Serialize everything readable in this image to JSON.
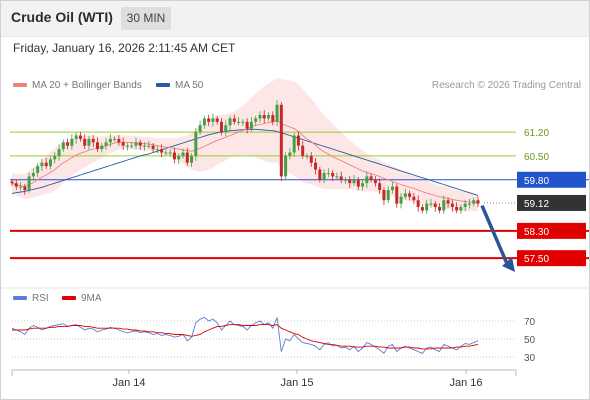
{
  "header": {
    "title": "Crude Oil (WTI)",
    "timeframe": "30 MIN"
  },
  "datetime": "Friday, January 16, 2026 2:11:45 AM CET",
  "legend": {
    "ma20_label": "MA 20 + Bollinger Bands",
    "ma50_label": "MA 50",
    "rsi_label": "RSI",
    "rsi_ma_label": "9MA"
  },
  "credit": "Research © 2026 Trading Central",
  "colors": {
    "bull": "#43a047",
    "bear": "#c62828",
    "ma20": "#f08080",
    "band_fill": "#fde3e3",
    "ma50": "#2c5aa0",
    "support": "#e00000",
    "resistance_minor": "#9acd32",
    "resistance": "#2255cc",
    "current": "#333333",
    "arrow": "#2a5597",
    "rsi": "#5b7fd9",
    "rsi_ma": "#e00000"
  },
  "chart_data": {
    "type": "candlestick",
    "x_ticks": [
      "Jan 14",
      "Jan 15",
      "Jan 16"
    ],
    "price_ylim": [
      56.8,
      62.2
    ],
    "levels": [
      {
        "value": 61.2,
        "label": "61.20",
        "kind": "resistance_minor"
      },
      {
        "value": 60.5,
        "label": "60.50",
        "kind": "resistance_minor"
      },
      {
        "value": 59.8,
        "label": "59.80",
        "kind": "resistance"
      },
      {
        "value": 59.12,
        "label": "59.12",
        "kind": "current"
      },
      {
        "value": 58.3,
        "label": "58.30",
        "kind": "support"
      },
      {
        "value": 57.5,
        "label": "57.50",
        "kind": "support"
      }
    ],
    "close": [
      59.7,
      59.6,
      59.6,
      59.5,
      59.9,
      60.0,
      60.2,
      60.3,
      60.2,
      60.4,
      60.5,
      60.7,
      60.9,
      60.8,
      61.0,
      61.1,
      61.0,
      60.8,
      61.0,
      60.9,
      60.7,
      60.8,
      60.9,
      61.0,
      61.0,
      60.9,
      60.8,
      60.8,
      60.8,
      60.9,
      60.8,
      60.8,
      60.8,
      60.7,
      60.7,
      60.6,
      60.6,
      60.6,
      60.4,
      60.5,
      60.6,
      60.3,
      60.5,
      61.2,
      61.4,
      61.6,
      61.5,
      61.6,
      61.5,
      61.2,
      61.4,
      61.6,
      61.5,
      61.5,
      61.5,
      61.3,
      61.5,
      61.6,
      61.7,
      61.6,
      61.7,
      61.5,
      62.0,
      59.9,
      60.5,
      60.6,
      61.1,
      60.8,
      60.5,
      60.5,
      60.3,
      60.1,
      59.8,
      60.0,
      60.0,
      59.9,
      59.9,
      59.8,
      59.8,
      59.7,
      59.8,
      59.6,
      59.7,
      59.9,
      59.8,
      59.7,
      59.5,
      59.2,
      59.5,
      59.6,
      59.1,
      59.3,
      59.4,
      59.3,
      59.2,
      59.0,
      58.9,
      59.1,
      59.1,
      59.0,
      58.9,
      59.2,
      59.1,
      59.0,
      58.9,
      59.0,
      59.1,
      59.1,
      59.2,
      59.1
    ],
    "ma20": [
      59.7,
      59.65,
      59.63,
      59.6,
      59.66,
      59.72,
      59.8,
      59.88,
      59.94,
      60.02,
      60.1,
      60.2,
      60.3,
      60.37,
      60.45,
      60.52,
      60.58,
      60.62,
      60.67,
      60.7,
      60.73,
      60.75,
      60.8,
      60.84,
      60.88,
      60.9,
      60.9,
      60.9,
      60.89,
      60.88,
      60.87,
      60.86,
      60.85,
      60.83,
      60.8,
      60.78,
      60.76,
      60.75,
      60.72,
      60.7,
      60.68,
      60.65,
      60.64,
      60.68,
      60.72,
      60.78,
      60.84,
      60.9,
      60.96,
      61.0,
      61.05,
      61.1,
      61.15,
      61.2,
      61.25,
      61.3,
      61.35,
      61.4,
      61.42,
      61.45,
      61.48,
      61.5,
      61.55,
      61.45,
      61.4,
      61.35,
      61.3,
      61.22,
      61.1,
      61.0,
      60.92,
      60.82,
      60.7,
      60.62,
      60.55,
      60.48,
      60.42,
      60.36,
      60.3,
      60.24,
      60.18,
      60.12,
      60.06,
      60.02,
      59.98,
      59.94,
      59.9,
      59.84,
      59.8,
      59.75,
      59.7,
      59.66,
      59.62,
      59.58,
      59.55,
      59.5,
      59.45,
      59.41,
      59.37,
      59.34,
      59.3,
      59.28,
      59.25,
      59.22,
      59.2,
      59.18,
      59.16,
      59.15,
      59.14,
      59.13
    ],
    "ma50": [
      59.4,
      59.42,
      59.44,
      59.46,
      59.49,
      59.52,
      59.55,
      59.58,
      59.62,
      59.66,
      59.7,
      59.74,
      59.78,
      59.82,
      59.86,
      59.9,
      59.94,
      59.98,
      60.02,
      60.06,
      60.1,
      60.14,
      60.18,
      60.22,
      60.26,
      60.3,
      60.34,
      60.38,
      60.42,
      60.46,
      60.5,
      60.53,
      60.56,
      60.6,
      60.64,
      60.68,
      60.72,
      60.76,
      60.8,
      60.84,
      60.88,
      60.92,
      60.96,
      61.0,
      61.04,
      61.08,
      61.12,
      61.15,
      61.18,
      61.2,
      61.22,
      61.24,
      61.25,
      61.26,
      61.27,
      61.28,
      61.28,
      61.28,
      61.27,
      61.26,
      61.25,
      61.24,
      61.22,
      61.18,
      61.14,
      61.1,
      61.06,
      61.02,
      60.98,
      60.94,
      60.9,
      60.86,
      60.82,
      60.78,
      60.74,
      60.7,
      60.66,
      60.62,
      60.58,
      60.54,
      60.5,
      60.46,
      60.42,
      60.38,
      60.34,
      60.3,
      60.26,
      60.22,
      60.18,
      60.14,
      60.1,
      60.06,
      60.02,
      59.98,
      59.94,
      59.9,
      59.86,
      59.82,
      59.78,
      59.74,
      59.7,
      59.66,
      59.62,
      59.58,
      59.54,
      59.5,
      59.46,
      59.42,
      59.38,
      59.34
    ],
    "band_width": [
      0.3,
      0.32,
      0.34,
      0.36,
      0.4,
      0.44,
      0.48,
      0.52,
      0.56,
      0.6,
      0.62,
      0.62,
      0.6,
      0.56,
      0.52,
      0.5,
      0.48,
      0.46,
      0.44,
      0.4,
      0.36,
      0.32,
      0.28,
      0.26,
      0.24,
      0.22,
      0.2,
      0.2,
      0.2,
      0.2,
      0.2,
      0.2,
      0.2,
      0.21,
      0.22,
      0.24,
      0.26,
      0.28,
      0.3,
      0.34,
      0.4,
      0.46,
      0.54,
      0.62,
      0.68,
      0.72,
      0.74,
      0.74,
      0.72,
      0.7,
      0.68,
      0.66,
      0.66,
      0.68,
      0.72,
      0.78,
      0.86,
      0.94,
      1.02,
      1.1,
      1.16,
      1.2,
      1.24,
      1.3,
      1.34,
      1.36,
      1.38,
      1.38,
      1.36,
      1.32,
      1.26,
      1.2,
      1.14,
      1.08,
      1.02,
      0.96,
      0.9,
      0.84,
      0.78,
      0.72,
      0.68,
      0.64,
      0.6,
      0.56,
      0.52,
      0.5,
      0.48,
      0.47,
      0.46,
      0.45,
      0.44,
      0.43,
      0.42,
      0.41,
      0.4,
      0.39,
      0.38,
      0.37,
      0.36,
      0.35,
      0.34,
      0.33,
      0.32,
      0.31,
      0.3,
      0.29,
      0.28,
      0.27,
      0.26,
      0.25
    ],
    "rsi_ylim": [
      20,
      80
    ],
    "rsi_levels": [
      70,
      50,
      30
    ],
    "rsi": [
      62,
      60,
      58,
      55,
      62,
      65,
      63,
      60,
      62,
      64,
      65,
      66,
      67,
      64,
      65,
      66,
      63,
      60,
      62,
      61,
      58,
      60,
      61,
      63,
      62,
      60,
      58,
      57,
      58,
      59,
      57,
      58,
      57,
      55,
      56,
      54,
      55,
      54,
      52,
      53,
      55,
      48,
      52,
      68,
      72,
      74,
      70,
      72,
      68,
      60,
      65,
      70,
      66,
      65,
      64,
      60,
      65,
      68,
      70,
      66,
      68,
      62,
      74,
      36,
      50,
      48,
      55,
      50,
      46,
      45,
      44,
      42,
      38,
      44,
      46,
      42,
      43,
      40,
      41,
      38,
      42,
      36,
      40,
      46,
      44,
      41,
      38,
      34,
      42,
      44,
      36,
      40,
      42,
      40,
      38,
      36,
      34,
      40,
      41,
      38,
      36,
      44,
      42,
      40,
      38,
      42,
      45,
      44,
      46,
      48
    ],
    "rsi_ma": [
      60,
      60,
      60,
      60,
      61,
      62,
      62,
      62,
      62,
      63,
      63,
      64,
      64,
      64,
      65,
      65,
      65,
      64,
      64,
      63,
      62,
      62,
      62,
      62,
      62,
      62,
      61,
      61,
      60,
      60,
      59,
      59,
      58,
      58,
      57,
      57,
      56,
      56,
      55,
      55,
      55,
      54,
      53,
      54,
      55,
      58,
      60,
      62,
      64,
      64,
      65,
      66,
      66,
      66,
      65,
      65,
      65,
      65,
      66,
      66,
      66,
      65,
      66,
      62,
      60,
      58,
      56,
      55,
      52,
      50,
      48,
      47,
      46,
      45,
      44,
      44,
      43,
      42,
      42,
      42,
      41,
      41,
      41,
      42,
      42,
      42,
      41,
      41,
      40,
      40,
      40,
      40,
      41,
      41,
      40,
      40,
      39,
      39,
      39,
      40,
      40,
      40,
      40,
      40,
      41,
      41,
      42,
      42,
      43,
      44
    ]
  }
}
